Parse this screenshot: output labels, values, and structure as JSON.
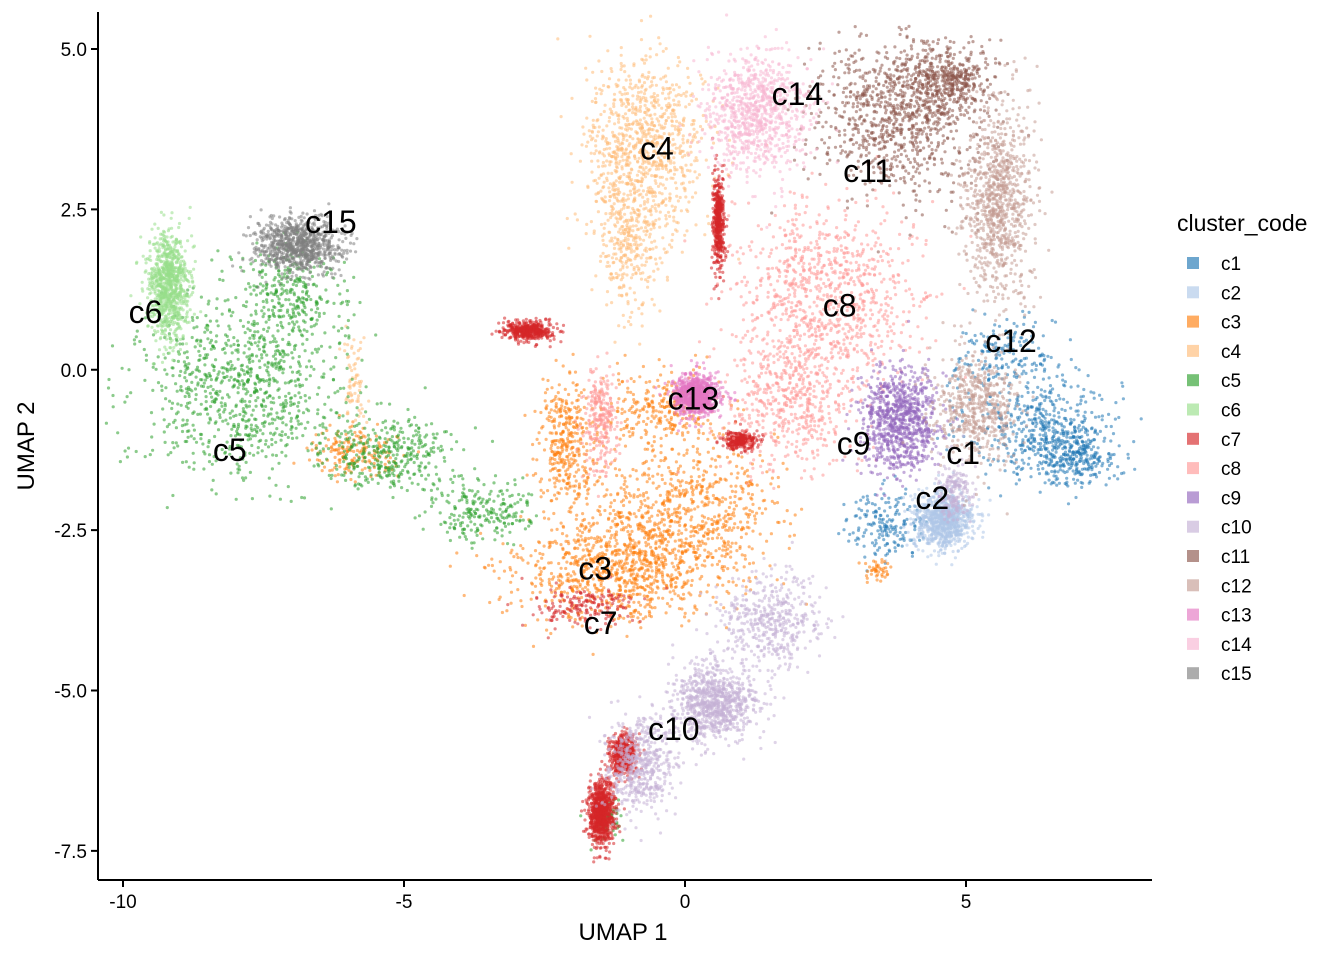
{
  "chart_data": {
    "type": "scatter",
    "title": "",
    "xlabel": "UMAP 1",
    "ylabel": "UMAP 2",
    "xlim": [
      -10.45,
      8.35
    ],
    "ylim": [
      -7.95,
      5.6
    ],
    "x_ticks": [
      -10,
      -5,
      0,
      5
    ],
    "x_tick_labels": [
      "-10",
      "-5",
      "0",
      "5"
    ],
    "y_ticks": [
      5.0,
      2.5,
      0.0,
      -2.5,
      -5.0,
      -7.5
    ],
    "y_tick_labels": [
      "5.0",
      "2.5",
      "0.0",
      "-2.5",
      "-5.0",
      "-7.5"
    ],
    "grid": false,
    "legend": {
      "title": "cluster_code",
      "position": "right"
    },
    "series": [
      {
        "name": "c1",
        "color": "#1f77b4",
        "label_x": 4.95,
        "label_y": -1.3,
        "blobs": [
          [
            6.4,
            -0.9,
            0.9,
            0.55,
            0.5
          ],
          [
            6.9,
            -1.35,
            0.5,
            0.3,
            0.3
          ],
          [
            3.6,
            -2.4,
            0.5,
            0.35,
            0.2
          ],
          [
            5.7,
            0.2,
            0.6,
            0.4,
            0.2
          ]
        ]
      },
      {
        "name": "c2",
        "color": "#aec7e8",
        "label_x": 4.4,
        "label_y": -2.0,
        "blobs": [
          [
            4.6,
            -2.35,
            0.35,
            0.3,
            1
          ]
        ]
      },
      {
        "name": "c3",
        "color": "#ff7f0e",
        "label_x": -1.6,
        "label_y": -3.1,
        "blobs": [
          [
            -1.2,
            -3.1,
            1.2,
            0.55,
            1
          ],
          [
            0.0,
            -2.2,
            1.1,
            0.7,
            0.8
          ],
          [
            -2.1,
            -1.1,
            0.35,
            0.6,
            0.4
          ],
          [
            -0.4,
            -0.6,
            0.7,
            0.4,
            0.3
          ],
          [
            -5.9,
            -1.3,
            0.5,
            0.25,
            0.2
          ],
          [
            3.4,
            -3.1,
            0.15,
            0.12,
            0.05
          ]
        ]
      },
      {
        "name": "c4",
        "color": "#ffbb78",
        "label_x": -0.5,
        "label_y": 3.45,
        "blobs": [
          [
            -0.7,
            3.5,
            0.7,
            0.9,
            1
          ],
          [
            -1.0,
            2.0,
            0.4,
            0.8,
            0.4
          ],
          [
            -5.9,
            -0.2,
            0.15,
            0.5,
            0.08
          ]
        ]
      },
      {
        "name": "c5",
        "color": "#2ca02c",
        "label_x": -8.1,
        "label_y": -1.25,
        "blobs": [
          [
            -7.9,
            -0.3,
            1.2,
            0.9,
            1
          ],
          [
            -5.3,
            -1.3,
            0.8,
            0.35,
            0.4
          ],
          [
            -3.6,
            -2.2,
            0.6,
            0.3,
            0.25
          ],
          [
            -7.0,
            1.2,
            0.6,
            0.5,
            0.3
          ],
          [
            -1.4,
            -7.0,
            0.2,
            0.2,
            0.08
          ]
        ]
      },
      {
        "name": "c6",
        "color": "#98df8a",
        "label_x": -9.6,
        "label_y": 0.9,
        "blobs": [
          [
            -9.2,
            1.3,
            0.25,
            0.55,
            1
          ]
        ]
      },
      {
        "name": "c7",
        "color": "#d62728",
        "label_x": -1.5,
        "label_y": -3.95,
        "blobs": [
          [
            -1.5,
            -6.9,
            0.15,
            0.35,
            1
          ],
          [
            -1.1,
            -6.0,
            0.15,
            0.2,
            0.6
          ],
          [
            0.6,
            2.3,
            0.07,
            0.5,
            0.5
          ],
          [
            -2.8,
            0.6,
            0.3,
            0.1,
            0.5
          ],
          [
            1.0,
            -1.1,
            0.2,
            0.1,
            0.3
          ],
          [
            -1.8,
            -3.7,
            0.6,
            0.2,
            0.2
          ]
        ]
      },
      {
        "name": "c8",
        "color": "#ff9896",
        "label_x": 2.75,
        "label_y": 1.0,
        "blobs": [
          [
            2.5,
            1.2,
            1.1,
            0.9,
            1
          ],
          [
            1.9,
            -0.5,
            0.8,
            0.7,
            0.6
          ],
          [
            -1.5,
            -0.8,
            0.2,
            0.5,
            0.3
          ]
        ]
      },
      {
        "name": "c9",
        "color": "#9467bd",
        "label_x": 3.0,
        "label_y": -1.15,
        "blobs": [
          [
            3.8,
            -0.8,
            0.45,
            0.55,
            1
          ]
        ]
      },
      {
        "name": "c10",
        "color": "#c5b0d5",
        "label_x": -0.2,
        "label_y": -5.6,
        "blobs": [
          [
            0.5,
            -5.2,
            0.5,
            0.4,
            1
          ],
          [
            -0.8,
            -6.2,
            0.4,
            0.5,
            0.6
          ],
          [
            1.5,
            -3.9,
            0.6,
            0.5,
            0.5
          ],
          [
            4.8,
            -1.9,
            0.2,
            0.3,
            0.2
          ]
        ]
      },
      {
        "name": "c11",
        "color": "#8c564b",
        "label_x": 3.25,
        "label_y": 3.1,
        "blobs": [
          [
            3.8,
            3.9,
            1.0,
            0.8,
            1
          ],
          [
            4.6,
            4.5,
            0.6,
            0.35,
            0.5
          ]
        ]
      },
      {
        "name": "c12",
        "color": "#c49c94",
        "label_x": 5.8,
        "label_y": 0.45,
        "blobs": [
          [
            5.6,
            2.6,
            0.4,
            1.0,
            1
          ],
          [
            5.2,
            -0.6,
            0.5,
            0.6,
            0.6
          ]
        ]
      },
      {
        "name": "c13",
        "color": "#e377c2",
        "label_x": 0.15,
        "label_y": -0.45,
        "blobs": [
          [
            0.2,
            -0.4,
            0.25,
            0.2,
            1
          ]
        ]
      },
      {
        "name": "c14",
        "color": "#f7b6d2",
        "label_x": 2.0,
        "label_y": 4.3,
        "blobs": [
          [
            1.3,
            4.0,
            0.6,
            0.6,
            1
          ]
        ]
      },
      {
        "name": "c15",
        "color": "#7f7f7f",
        "label_x": -6.3,
        "label_y": 2.3,
        "blobs": [
          [
            -6.9,
            1.95,
            0.5,
            0.28,
            1
          ]
        ]
      }
    ]
  }
}
